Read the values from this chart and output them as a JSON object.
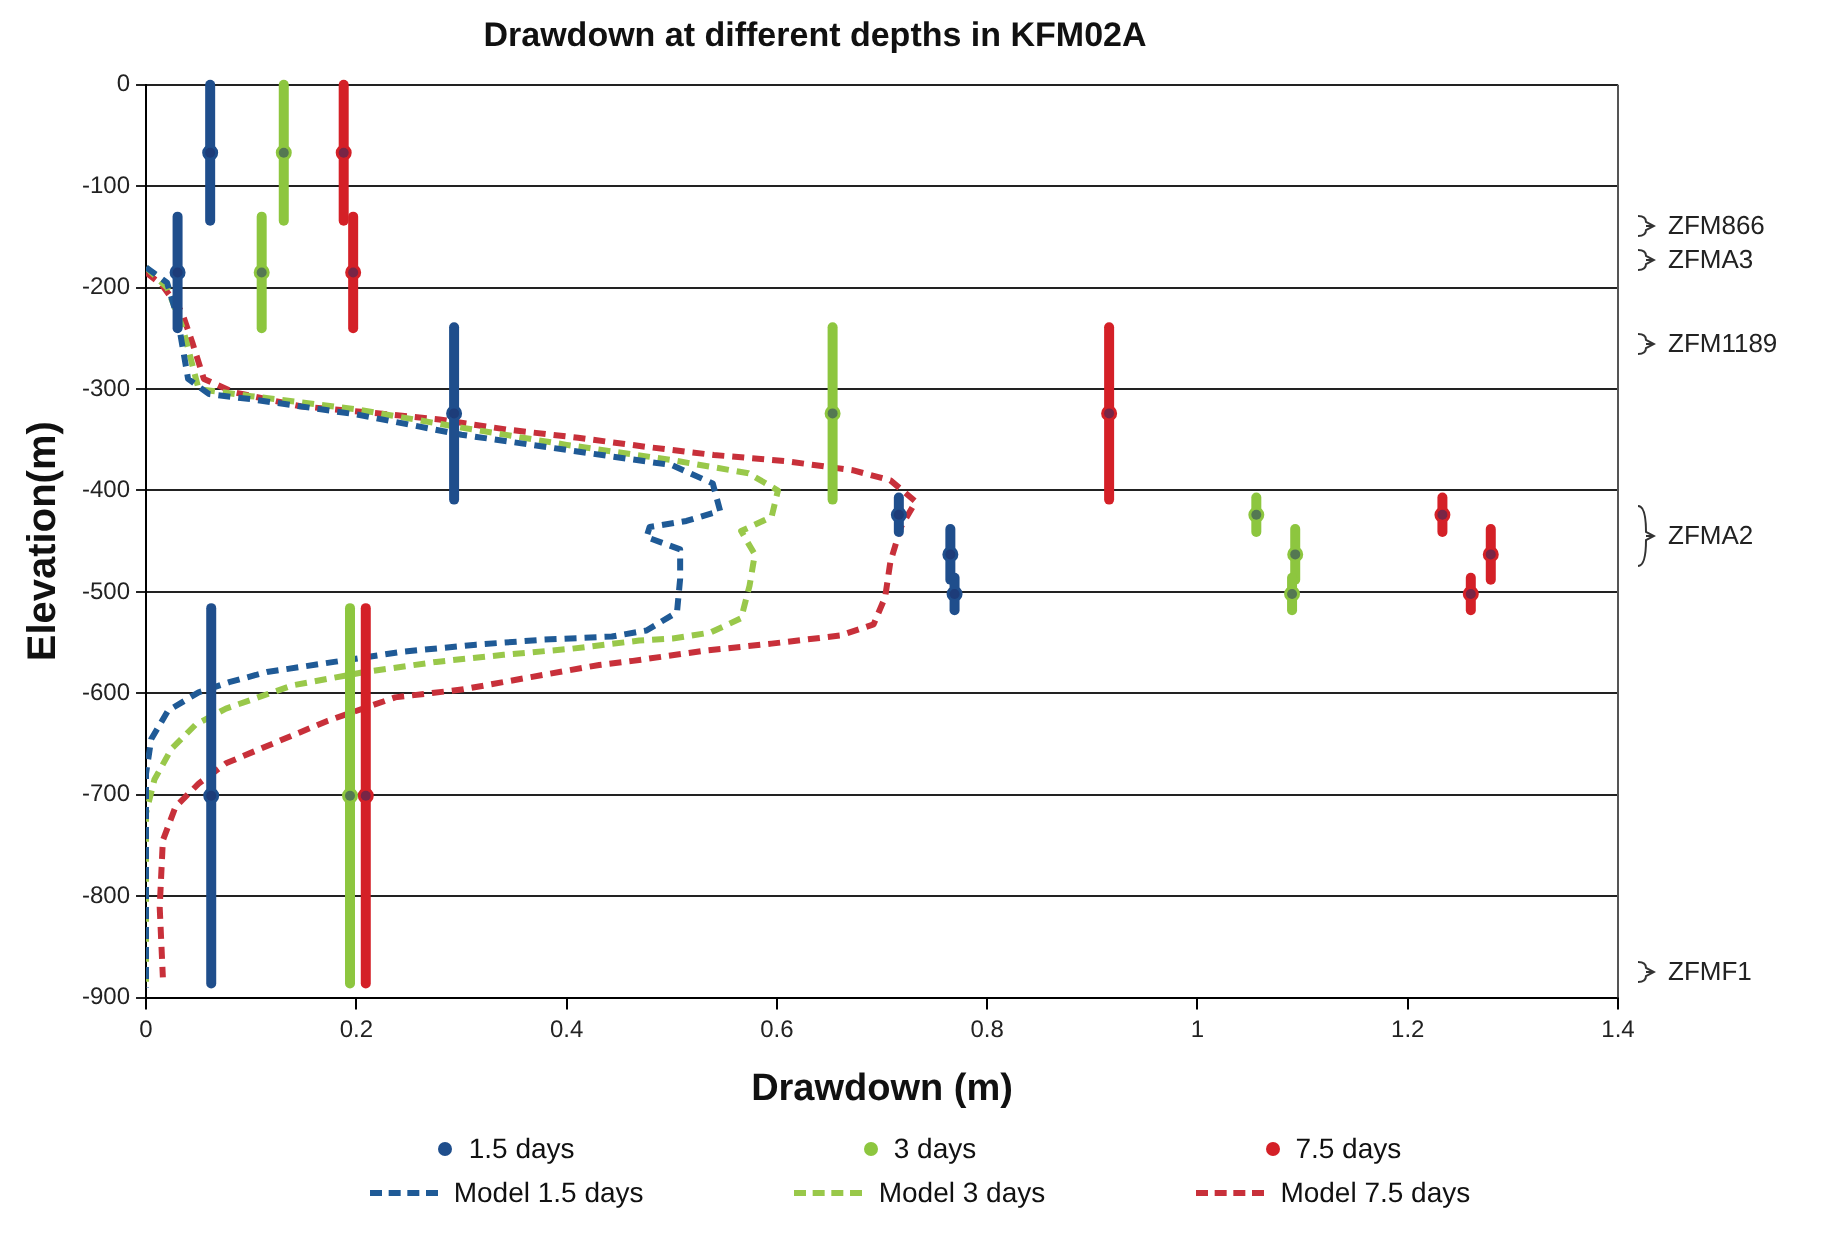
{
  "chart_data": {
    "type": "scatter",
    "title": "Drawdown at different depths in KFM02A",
    "xlabel": "Drawdown (m)",
    "ylabel": "Elevation(m)",
    "xlim": [
      0,
      1.4
    ],
    "xticks": [
      0,
      0.2,
      0.4,
      0.6,
      0.8,
      1,
      1.2,
      1.4
    ],
    "ylim": [
      -900,
      0
    ],
    "yticks": [
      -900,
      -800,
      -700,
      -600,
      -500,
      -400,
      -300,
      -200,
      -100,
      0
    ],
    "grid": "y",
    "legend": "bottom",
    "annotations": [
      "ZFM866",
      "ZFMA3",
      "ZFM1189",
      "ZFMA2",
      "ZFMF1"
    ],
    "series": [
      {
        "name": "1.5 days",
        "type": "scatter",
        "marker": "circle",
        "color": "#1f4e8c",
        "x": [
          0.061,
          0.03,
          0.293,
          0.716,
          0.765,
          0.769,
          0.062
        ],
        "values": [
          -67,
          -185,
          -324,
          -424,
          -463,
          -502,
          -701
        ],
        "errors": [
          67,
          55,
          85,
          17,
          25,
          16,
          185
        ]
      },
      {
        "name": "3 days",
        "type": "scatter",
        "marker": "circle",
        "color": "#8dc63f",
        "x": [
          0.131,
          0.11,
          0.653,
          1.056,
          1.093,
          1.09,
          0.194
        ],
        "values": [
          -67,
          -185,
          -324,
          -424,
          -463,
          -502,
          -701
        ],
        "errors": [
          67,
          55,
          85,
          17,
          25,
          16,
          185
        ]
      },
      {
        "name": "7.5 days",
        "type": "scatter",
        "marker": "circle",
        "color": "#d42027",
        "x": [
          0.188,
          0.197,
          0.916,
          1.233,
          1.279,
          1.26,
          0.209
        ],
        "values": [
          -67,
          -185,
          -324,
          -424,
          -463,
          -502,
          -701
        ],
        "errors": [
          67,
          55,
          85,
          17,
          25,
          16,
          185
        ]
      },
      {
        "name": "Model 1.5 days",
        "type": "line",
        "marker": "none",
        "line_style": "dashed",
        "color": "#1f5a96",
        "x": [
          0,
          0.02,
          0.03,
          0.04,
          0.06,
          0.1,
          0.2,
          0.3,
          0.4,
          0.5,
          0.539,
          0.546,
          0.514,
          0.479,
          0.476,
          0.508,
          0.508,
          0.505,
          0.476,
          0.443,
          0.379,
          0.314,
          0.244,
          0.179,
          0.115,
          0.079,
          0.05,
          0.021,
          0.005,
          0,
          0
        ],
        "values": [
          -180,
          -195,
          -230,
          -290,
          -305,
          -310,
          -325,
          -345,
          -360,
          -375,
          -393,
          -420,
          -430,
          -436,
          -446,
          -458,
          -487,
          -520,
          -538,
          -544,
          -547,
          -552,
          -559,
          -569,
          -579,
          -589,
          -599,
          -617,
          -645,
          -679,
          -890
        ]
      },
      {
        "name": "Model 3 days",
        "type": "line",
        "marker": "none",
        "line_style": "dashed",
        "color": "#99c84a",
        "x": [
          0,
          0.02,
          0.035,
          0.05,
          0.1,
          0.2,
          0.3,
          0.4,
          0.5,
          0.573,
          0.601,
          0.595,
          0.566,
          0.579,
          0.574,
          0.566,
          0.537,
          0.501,
          0.469,
          0.405,
          0.34,
          0.276,
          0.208,
          0.14,
          0.076,
          0.047,
          0.024,
          0.008,
          0,
          0
        ],
        "values": [
          -180,
          -200,
          -240,
          -300,
          -307,
          -320,
          -338,
          -355,
          -370,
          -383,
          -400,
          -426,
          -440,
          -463,
          -494,
          -526,
          -540,
          -546,
          -548,
          -556,
          -562,
          -569,
          -579,
          -592,
          -615,
          -631,
          -655,
          -685,
          -718,
          -890
        ]
      },
      {
        "name": "Model 7.5 days",
        "type": "line",
        "marker": "none",
        "line_style": "dashed",
        "color": "#c8303a",
        "x": [
          0,
          0.015,
          0.034,
          0.044,
          0.055,
          0.083,
          0.147,
          0.211,
          0.279,
          0.344,
          0.411,
          0.476,
          0.54,
          0.608,
          0.672,
          0.708,
          0.732,
          0.718,
          0.708,
          0.703,
          0.692,
          0.66,
          0.595,
          0.531,
          0.463,
          0.431,
          0.366,
          0.302,
          0.237,
          0.173,
          0.108,
          0.076,
          0.05,
          0.028,
          0.016,
          0.013,
          0.016
        ],
        "values": [
          -185,
          -197,
          -224,
          -254,
          -290,
          -303,
          -317,
          -323,
          -330,
          -340,
          -348,
          -357,
          -365,
          -371,
          -380,
          -390,
          -411,
          -436,
          -470,
          -505,
          -532,
          -543,
          -551,
          -558,
          -568,
          -572,
          -584,
          -596,
          -604,
          -627,
          -655,
          -669,
          -689,
          -712,
          -745,
          -811,
          -880
        ]
      }
    ]
  }
}
